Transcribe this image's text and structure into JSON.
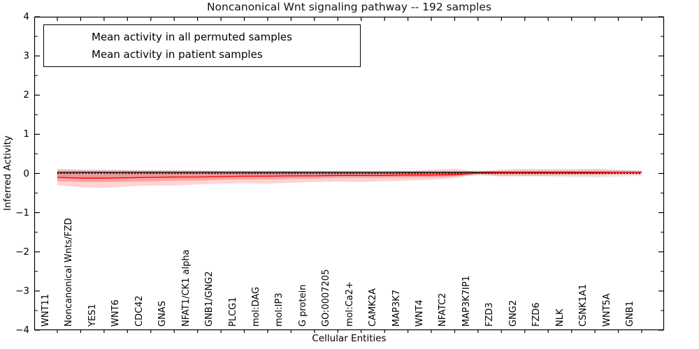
{
  "figure": {
    "title": "Noncanonical Wnt signaling pathway -- 192 samples",
    "xlabel": "Cellular Entities",
    "ylabel": "Inferred Activity"
  },
  "legend": {
    "items": [
      {
        "label": "Mean activity in all permuted samples",
        "color": "#000000"
      },
      {
        "label": "Mean activity in patient samples",
        "color": "#ff0000"
      }
    ]
  },
  "chart_data": {
    "type": "line",
    "title": "Noncanonical Wnt signaling pathway -- 192 samples",
    "xlabel": "Cellular Entities",
    "ylabel": "Inferred Activity",
    "ylim": [
      -4,
      4
    ],
    "grid": false,
    "legend_position": "upper left",
    "y_major_ticks": [
      {
        "value": 4,
        "label": "4"
      },
      {
        "value": 3,
        "label": "3"
      },
      {
        "value": 2,
        "label": "2"
      },
      {
        "value": 1,
        "label": "1"
      },
      {
        "value": 0,
        "label": "0"
      },
      {
        "value": -1,
        "label": "−1"
      },
      {
        "value": -2,
        "label": "−2"
      },
      {
        "value": -3,
        "label": "−3"
      },
      {
        "value": -4,
        "label": "−4"
      }
    ],
    "y_minor_step": 0.5,
    "categories": [
      "WNT11",
      "Noncanonical Wnts/FZD",
      "YES1",
      "WNT6",
      "CDC42",
      "GNAS",
      "NFAT1/CK1 alpha",
      "GNB1/GNG2",
      "PLCG1",
      "mol:DAG",
      "mol:IP3",
      "G protein",
      "GO:0007205",
      "mol:Ca2+",
      "CAMK2A",
      "MAP3K7",
      "WNT4",
      "NFATC2",
      "MAP3K7IP1",
      "FZD3",
      "GNG2",
      "FZD6",
      "NLK",
      "CSNK1A1",
      "WNT5A",
      "GNB1"
    ],
    "series": [
      {
        "name": "Mean activity in all permuted samples",
        "color": "#000000",
        "values": [
          0.03,
          0.03,
          0.03,
          0.03,
          0.03,
          0.03,
          0.03,
          0.03,
          0.03,
          0.03,
          0.03,
          0.03,
          0.03,
          0.03,
          0.03,
          0.03,
          0.03,
          0.03,
          0.03,
          0.03,
          0.03,
          0.03,
          0.03,
          0.03,
          0.03,
          0.03
        ]
      },
      {
        "name": "Mean activity in patient samples",
        "color": "#ff0000",
        "values": [
          -0.1,
          -0.12,
          -0.12,
          -0.11,
          -0.1,
          -0.09,
          -0.09,
          -0.08,
          -0.07,
          -0.07,
          -0.06,
          -0.06,
          -0.05,
          -0.05,
          -0.05,
          -0.04,
          -0.04,
          -0.03,
          0.01,
          0.02,
          0.02,
          0.02,
          0.02,
          0.02,
          0.03,
          0.03
        ]
      }
    ],
    "zero_line": {
      "y": 0,
      "style": "dashed",
      "color": "#000000"
    },
    "bands": [
      {
        "name": "permuted-samples-std-band",
        "color": "rgba(110,110,110,0.17)",
        "upper": [
          0.1,
          0.09,
          0.09,
          0.08,
          0.08,
          0.08,
          0.07,
          0.07,
          0.07,
          0.07,
          0.06,
          0.06,
          0.06,
          0.06,
          0.06,
          0.06,
          0.06,
          0.07,
          0.08,
          0.08,
          0.09,
          0.1,
          0.11,
          0.12,
          0.1,
          0.08
        ],
        "lower": [
          -0.12,
          -0.13,
          -0.12,
          -0.12,
          -0.11,
          -0.11,
          -0.1,
          -0.1,
          -0.09,
          -0.09,
          -0.09,
          -0.08,
          -0.08,
          -0.08,
          -0.08,
          -0.07,
          -0.07,
          -0.06,
          -0.06,
          -0.06,
          -0.07,
          -0.08,
          -0.09,
          -0.1,
          -0.08,
          -0.06
        ]
      },
      {
        "name": "patient-samples-std-band-outer",
        "color": "rgba(255,40,40,0.20)",
        "upper": [
          0.12,
          0.1,
          0.09,
          0.09,
          0.08,
          0.08,
          0.08,
          0.07,
          0.07,
          0.06,
          0.06,
          0.06,
          0.05,
          0.05,
          0.05,
          0.06,
          0.1,
          0.12,
          0.04,
          0.1,
          0.11,
          0.1,
          0.09,
          0.1,
          0.08,
          0.06
        ],
        "lower": [
          -0.3,
          -0.35,
          -0.37,
          -0.33,
          -0.31,
          -0.31,
          -0.28,
          -0.26,
          -0.25,
          -0.26,
          -0.24,
          -0.22,
          -0.21,
          -0.22,
          -0.2,
          -0.18,
          -0.16,
          -0.12,
          -0.02,
          -0.08,
          -0.07,
          -0.06,
          -0.05,
          -0.05,
          -0.03,
          -0.02
        ],
        "series": "Mean activity in patient samples"
      },
      {
        "name": "patient-samples-std-band-inner",
        "color": "rgba(255,40,40,0.28)",
        "upper": [
          0.0,
          -0.02,
          -0.02,
          -0.01,
          0.0,
          0.0,
          0.0,
          0.0,
          0.01,
          0.01,
          0.01,
          0.01,
          0.01,
          0.01,
          0.01,
          0.02,
          0.02,
          0.02,
          0.03,
          0.05,
          0.05,
          0.05,
          0.05,
          0.05,
          0.05,
          0.05
        ],
        "lower": [
          -0.2,
          -0.22,
          -0.22,
          -0.21,
          -0.2,
          -0.18,
          -0.18,
          -0.16,
          -0.15,
          -0.15,
          -0.13,
          -0.13,
          -0.11,
          -0.11,
          -0.11,
          -0.1,
          -0.1,
          -0.08,
          -0.01,
          -0.01,
          -0.01,
          -0.01,
          -0.01,
          -0.01,
          0.01,
          0.01
        ],
        "series": "Mean activity in patient samples"
      }
    ]
  }
}
